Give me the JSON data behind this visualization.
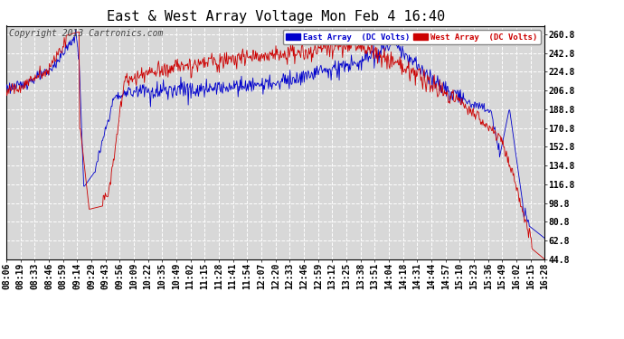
{
  "title": "East & West Array Voltage Mon Feb 4 16:40",
  "copyright": "Copyright 2013 Cartronics.com",
  "legend_east": "East Array  (DC Volts)",
  "legend_west": "West Array  (DC Volts)",
  "east_color": "#0000cc",
  "west_color": "#cc0000",
  "background_color": "#ffffff",
  "plot_bg_color": "#d8d8d8",
  "grid_color": "#ffffff",
  "yticks": [
    44.8,
    62.8,
    80.8,
    98.8,
    116.8,
    134.8,
    152.8,
    170.8,
    188.8,
    206.8,
    224.8,
    242.8,
    260.8
  ],
  "ylim": [
    44.8,
    269.0
  ],
  "title_fontsize": 11,
  "tick_fontsize": 7,
  "copyright_fontsize": 7
}
